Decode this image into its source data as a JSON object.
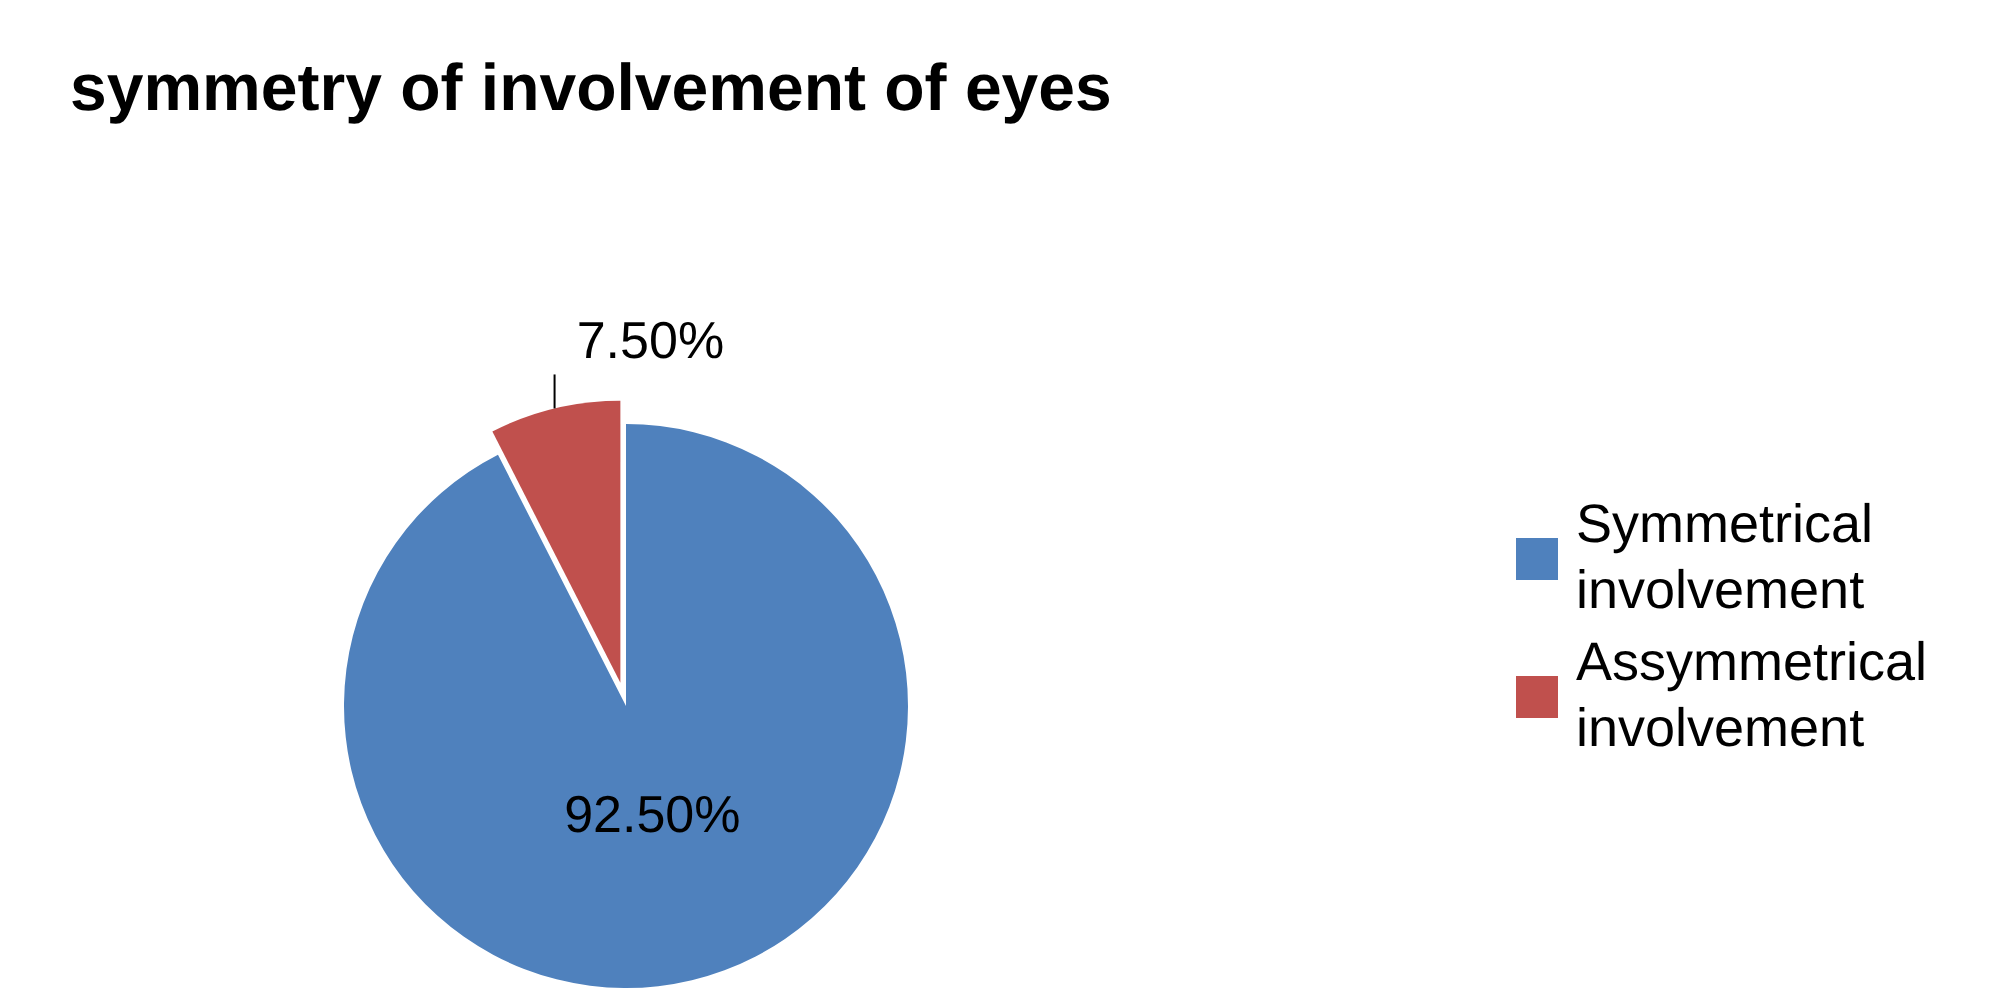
{
  "chart_data": {
    "type": "pie",
    "title": "symmetry of involvement of eyes",
    "categories": [
      "Symmetrical involvement",
      "Assymmetrical involvement"
    ],
    "values": [
      92.5,
      7.5
    ],
    "colors": [
      "#4f81bd",
      "#c0504d"
    ],
    "value_labels": [
      "92.50%",
      "7.50%"
    ],
    "legend": "right"
  }
}
